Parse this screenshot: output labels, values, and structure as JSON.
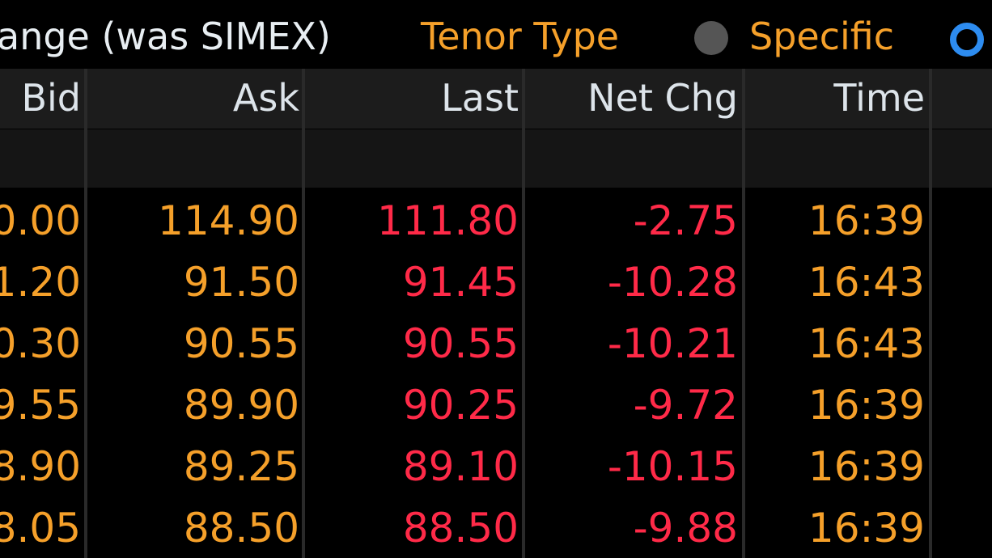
{
  "top_bar": {
    "exchange": "ange (was SIMEX)",
    "tenor_label": "Tenor Type",
    "option": "Specific"
  },
  "table": {
    "columns": [
      "Bid",
      "Ask",
      "Last",
      "Net Chg",
      "Time"
    ],
    "rows": [
      [
        "0.00",
        "114.90",
        "111.80",
        "-2.75",
        "16:39"
      ],
      [
        "1.20",
        "91.50",
        "91.45",
        "-10.28",
        "16:43"
      ],
      [
        "0.30",
        "90.55",
        "90.55",
        "-10.21",
        "16:43"
      ],
      [
        "9.55",
        "89.90",
        "90.25",
        "-9.72",
        "16:39"
      ],
      [
        "8.90",
        "89.25",
        "89.10",
        "-10.15",
        "16:39"
      ],
      [
        "8.05",
        "88.50",
        "88.50",
        "-9.88",
        "16:39"
      ]
    ]
  }
}
